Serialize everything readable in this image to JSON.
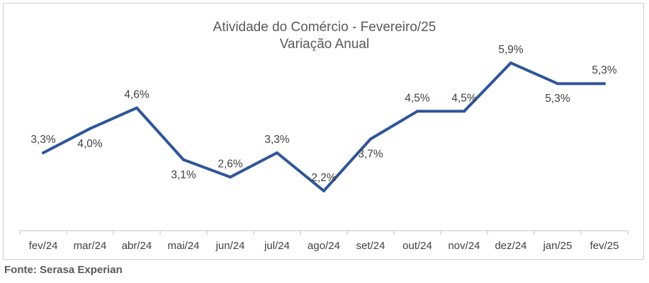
{
  "chart_data": {
    "type": "line",
    "title": "Atividade do Comércio - Fevereiro/25",
    "subtitle": "Variação Anual",
    "categories": [
      "fev/24",
      "mar/24",
      "abr/24",
      "mai/24",
      "jun/24",
      "jul/24",
      "ago/24",
      "set/24",
      "out/24",
      "nov/24",
      "dez/24",
      "jan/25",
      "fev/25"
    ],
    "series": [
      {
        "name": "Variação Anual",
        "values": [
          3.3,
          4.0,
          4.6,
          3.1,
          2.6,
          3.3,
          2.2,
          3.7,
          4.5,
          4.5,
          5.9,
          5.3,
          5.3
        ],
        "labels": [
          "3,3%",
          "4,0%",
          "4,6%",
          "3,1%",
          "2,6%",
          "3,3%",
          "2,2%",
          "3,7%",
          "4,5%",
          "4,5%",
          "5,9%",
          "5,3%",
          "5,3%"
        ],
        "color": "#2f5597"
      }
    ],
    "label_positions": [
      "above",
      "below",
      "above",
      "below",
      "above",
      "above",
      "above",
      "below",
      "above",
      "above",
      "above",
      "below",
      "above"
    ],
    "xlabel": "",
    "ylabel": "",
    "grid": false,
    "legend": "none"
  },
  "source": "Fonte: Serasa Experian",
  "colors": {
    "line": "#2f5597",
    "axis": "#bfbfbf",
    "text": "#404040"
  }
}
